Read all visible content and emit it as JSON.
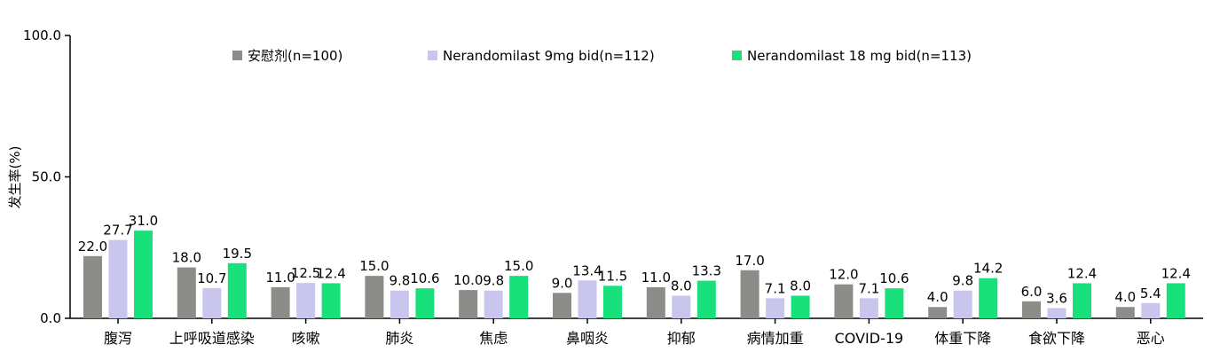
{
  "chart_data": {
    "type": "bar",
    "ylabel": "发生率(%)",
    "ylim": [
      0,
      100
    ],
    "yticks": [
      "0.0",
      "50.0",
      "100.0"
    ],
    "categories": [
      "腹泻",
      "上呼吸道感染",
      "咳嗽",
      "肺炎",
      "焦虑",
      "鼻咽炎",
      "抑郁",
      "病情加重",
      "COVID-19",
      "体重下降",
      "食欲下降",
      "恶心"
    ],
    "series": [
      {
        "name": "安慰剂(n=100)",
        "color": "#8c8c88",
        "values": [
          22.0,
          18.0,
          11.0,
          15.0,
          10.0,
          9.0,
          11.0,
          17.0,
          12.0,
          4.0,
          6.0,
          4.0
        ],
        "labels": [
          "22.0",
          "18.0",
          "11.0",
          "15.0",
          "10.0",
          "9.0",
          "11.0",
          "17.0",
          "12.0",
          "4.0",
          "6.0",
          "4.0"
        ]
      },
      {
        "name": "Nerandomilast 9mg bid(n=112)",
        "color": "#c9c6ee",
        "values": [
          27.7,
          10.7,
          12.5,
          9.8,
          9.8,
          13.4,
          8.0,
          7.1,
          7.1,
          9.8,
          3.6,
          5.4
        ],
        "labels": [
          "27.7",
          "10.7",
          "12.5",
          "9.8",
          "9.8",
          "13.4",
          "8.0",
          "7.1",
          "7.1",
          "9.8",
          "3.6",
          "5.4"
        ]
      },
      {
        "name": "Nerandomilast 18 mg bid(n=113)",
        "color": "#18e07a",
        "values": [
          31.0,
          19.5,
          12.4,
          10.6,
          15.0,
          11.5,
          13.3,
          8.0,
          10.6,
          14.2,
          12.4,
          12.4
        ],
        "labels": [
          "31.0",
          "19.5",
          "12.4",
          "10.6",
          "15.0",
          "11.5",
          "13.3",
          "8.0",
          "10.6",
          "14.2",
          "12.4",
          "12.4"
        ]
      }
    ],
    "legend_position": "top",
    "grid": false
  }
}
